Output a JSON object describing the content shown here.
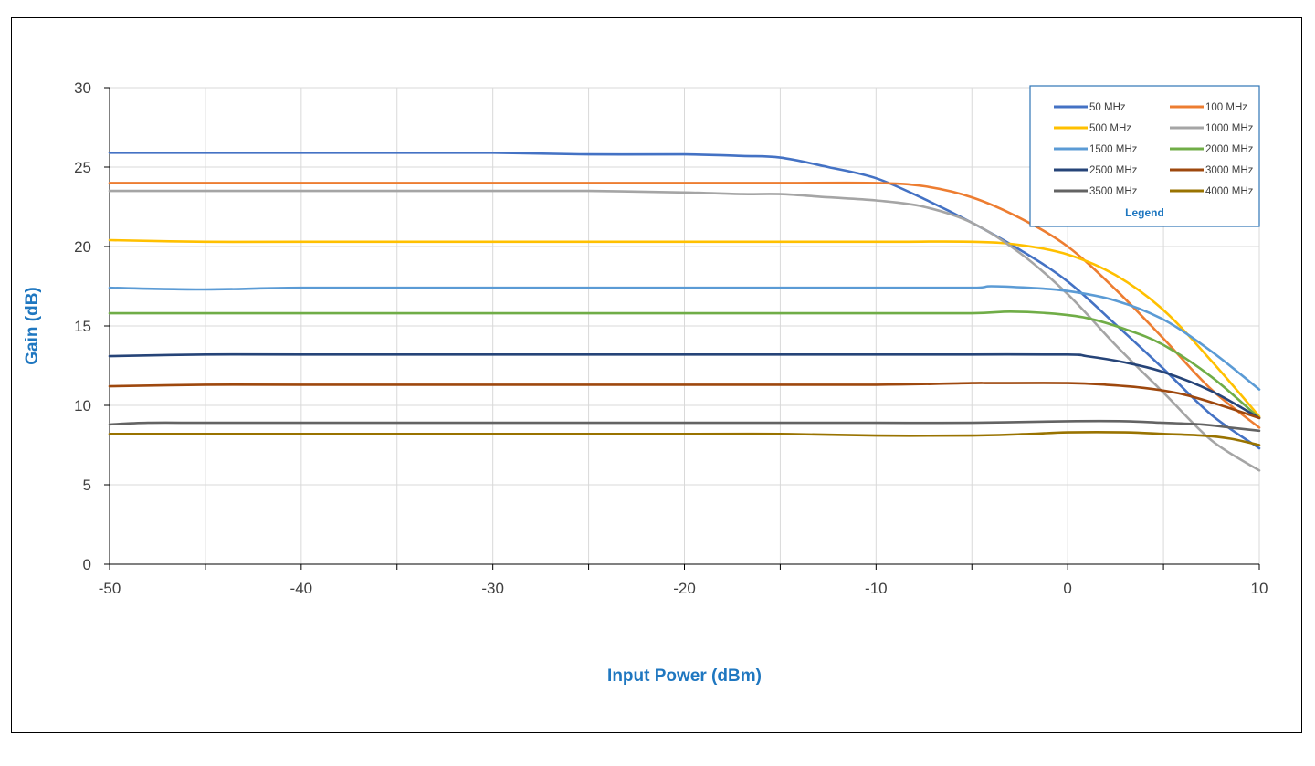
{
  "chart_data": {
    "type": "line",
    "title": "",
    "xlabel": "Input Power (dBm)",
    "ylabel": "Gain (dB)",
    "xlim": [
      -50,
      10
    ],
    "ylim": [
      0,
      30
    ],
    "xticks": [
      -50,
      -40,
      -30,
      -20,
      -10,
      0,
      10
    ],
    "yticks": [
      0,
      5,
      10,
      15,
      20,
      25,
      30
    ],
    "grid": true,
    "legend": {
      "title": "Legend",
      "placement": "top-right"
    },
    "series": [
      {
        "name": "50 MHz",
        "color": "#4472c4",
        "points": [
          [
            -50,
            25.9
          ],
          [
            -45,
            25.9
          ],
          [
            -40,
            25.9
          ],
          [
            -35,
            25.9
          ],
          [
            -30,
            25.9
          ],
          [
            -25,
            25.8
          ],
          [
            -20,
            25.8
          ],
          [
            -17,
            25.7
          ],
          [
            -15,
            25.6
          ],
          [
            -12.5,
            25.0
          ],
          [
            -10,
            24.3
          ],
          [
            -7.5,
            23.0
          ],
          [
            -5,
            21.5
          ],
          [
            -2.5,
            19.8
          ],
          [
            0,
            17.8
          ],
          [
            2.5,
            15.1
          ],
          [
            5,
            12.3
          ],
          [
            7.5,
            9.4
          ],
          [
            10,
            7.3
          ]
        ]
      },
      {
        "name": "100 MHz",
        "color": "#ed7d31",
        "points": [
          [
            -50,
            24.0
          ],
          [
            -45,
            24.0
          ],
          [
            -40,
            24.0
          ],
          [
            -35,
            24.0
          ],
          [
            -30,
            24.0
          ],
          [
            -25,
            24.0
          ],
          [
            -20,
            24.0
          ],
          [
            -15,
            24.0
          ],
          [
            -10,
            24.0
          ],
          [
            -7.5,
            23.8
          ],
          [
            -5,
            23.1
          ],
          [
            -2.5,
            21.8
          ],
          [
            0,
            20.0
          ],
          [
            2.5,
            17.3
          ],
          [
            5,
            14.2
          ],
          [
            7.5,
            11.0
          ],
          [
            10,
            8.6
          ]
        ]
      },
      {
        "name": "500 MHz",
        "color": "#ffc000",
        "points": [
          [
            -50,
            20.4
          ],
          [
            -45,
            20.3
          ],
          [
            -40,
            20.3
          ],
          [
            -30,
            20.3
          ],
          [
            -20,
            20.3
          ],
          [
            -10,
            20.3
          ],
          [
            -5,
            20.3
          ],
          [
            -2.5,
            20.1
          ],
          [
            0,
            19.5
          ],
          [
            2.5,
            18.2
          ],
          [
            5,
            16.0
          ],
          [
            7.5,
            12.8
          ],
          [
            10,
            9.3
          ]
        ]
      },
      {
        "name": "1000 MHz",
        "color": "#a5a5a5",
        "points": [
          [
            -50,
            23.5
          ],
          [
            -45,
            23.5
          ],
          [
            -40,
            23.5
          ],
          [
            -35,
            23.5
          ],
          [
            -30,
            23.5
          ],
          [
            -25,
            23.5
          ],
          [
            -20,
            23.4
          ],
          [
            -17,
            23.3
          ],
          [
            -15,
            23.3
          ],
          [
            -12.5,
            23.1
          ],
          [
            -10,
            22.9
          ],
          [
            -7.5,
            22.5
          ],
          [
            -5,
            21.5
          ],
          [
            -2.5,
            19.6
          ],
          [
            0,
            17.0
          ],
          [
            2.5,
            13.8
          ],
          [
            5,
            10.8
          ],
          [
            7.5,
            7.8
          ],
          [
            10,
            5.9
          ]
        ]
      },
      {
        "name": "1500 MHz",
        "color": "#5b9bd5",
        "points": [
          [
            -50,
            17.4
          ],
          [
            -45,
            17.3
          ],
          [
            -40,
            17.4
          ],
          [
            -30,
            17.4
          ],
          [
            -20,
            17.4
          ],
          [
            -10,
            17.4
          ],
          [
            -5,
            17.4
          ],
          [
            -4,
            17.5
          ],
          [
            -2,
            17.4
          ],
          [
            0,
            17.2
          ],
          [
            2.5,
            16.6
          ],
          [
            5,
            15.4
          ],
          [
            7.5,
            13.4
          ],
          [
            10,
            11.0
          ]
        ]
      },
      {
        "name": "2000 MHz",
        "color": "#70ad47",
        "points": [
          [
            -50,
            15.8
          ],
          [
            -45,
            15.8
          ],
          [
            -40,
            15.8
          ],
          [
            -30,
            15.8
          ],
          [
            -20,
            15.8
          ],
          [
            -10,
            15.8
          ],
          [
            -5,
            15.8
          ],
          [
            -3,
            15.9
          ],
          [
            -1,
            15.8
          ],
          [
            1,
            15.5
          ],
          [
            3,
            14.8
          ],
          [
            5,
            13.8
          ],
          [
            7.5,
            11.8
          ],
          [
            10,
            9.2
          ]
        ]
      },
      {
        "name": "2500 MHz",
        "color": "#264478",
        "points": [
          [
            -50,
            13.1
          ],
          [
            -45,
            13.2
          ],
          [
            -40,
            13.2
          ],
          [
            -30,
            13.2
          ],
          [
            -20,
            13.2
          ],
          [
            -10,
            13.2
          ],
          [
            -5,
            13.2
          ],
          [
            0,
            13.2
          ],
          [
            1,
            13.1
          ],
          [
            3,
            12.7
          ],
          [
            5,
            12.1
          ],
          [
            7.5,
            10.9
          ],
          [
            10,
            9.2
          ]
        ]
      },
      {
        "name": "3000 MHz",
        "color": "#9e480e",
        "points": [
          [
            -50,
            11.2
          ],
          [
            -45,
            11.3
          ],
          [
            -40,
            11.3
          ],
          [
            -30,
            11.3
          ],
          [
            -20,
            11.3
          ],
          [
            -10,
            11.3
          ],
          [
            -5,
            11.4
          ],
          [
            -4,
            11.4
          ],
          [
            0,
            11.4
          ],
          [
            2,
            11.3
          ],
          [
            4,
            11.1
          ],
          [
            6,
            10.7
          ],
          [
            8,
            10.0
          ],
          [
            10,
            9.2
          ]
        ]
      },
      {
        "name": "3500 MHz",
        "color": "#636363",
        "points": [
          [
            -50,
            8.8
          ],
          [
            -48,
            8.9
          ],
          [
            -45,
            8.9
          ],
          [
            -40,
            8.9
          ],
          [
            -30,
            8.9
          ],
          [
            -20,
            8.9
          ],
          [
            -15,
            8.9
          ],
          [
            -10,
            8.9
          ],
          [
            -5,
            8.9
          ],
          [
            0,
            9.0
          ],
          [
            3,
            9.0
          ],
          [
            5,
            8.9
          ],
          [
            7,
            8.8
          ],
          [
            8.5,
            8.6
          ],
          [
            10,
            8.4
          ]
        ]
      },
      {
        "name": "4000 MHz",
        "color": "#997300",
        "points": [
          [
            -50,
            8.2
          ],
          [
            -48,
            8.2
          ],
          [
            -45,
            8.2
          ],
          [
            -40,
            8.2
          ],
          [
            -30,
            8.2
          ],
          [
            -20,
            8.2
          ],
          [
            -15,
            8.2
          ],
          [
            -10,
            8.1
          ],
          [
            -5,
            8.1
          ],
          [
            -2,
            8.2
          ],
          [
            0,
            8.3
          ],
          [
            3,
            8.3
          ],
          [
            5,
            8.2
          ],
          [
            7,
            8.1
          ],
          [
            8.5,
            7.9
          ],
          [
            10,
            7.5
          ]
        ]
      }
    ]
  }
}
